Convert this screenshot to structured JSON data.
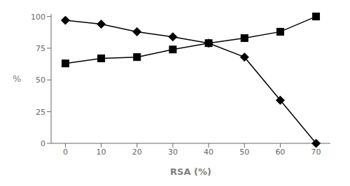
{
  "chart_data": {
    "type": "line",
    "x": [
      0,
      10,
      20,
      30,
      40,
      50,
      60,
      70
    ],
    "series": [
      {
        "values": [
          97,
          94,
          88,
          84,
          79,
          68,
          34,
          0
        ],
        "color": "#000000",
        "marker": "diamond"
      },
      {
        "values": [
          63,
          67,
          68,
          74,
          79,
          83,
          88,
          100
        ],
        "color": "#000000",
        "marker": "square"
      }
    ],
    "xlabel": "RSA (%)",
    "ylabel": "%",
    "xlim": [
      -4,
      74
    ],
    "ylim": [
      0,
      102
    ],
    "xticks": [
      0,
      10,
      20,
      30,
      40,
      50,
      60,
      70
    ],
    "yticks": [
      0,
      25,
      50,
      75,
      100
    ],
    "grid": false
  }
}
